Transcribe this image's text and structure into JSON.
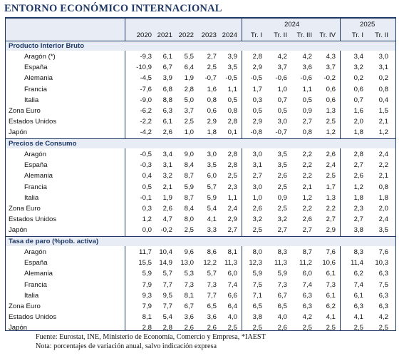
{
  "title": "ENTORNO ECONÓMICO INTERNACIONAL",
  "group_headers": [
    "2024",
    "2025"
  ],
  "column_headers": [
    "2020",
    "2021",
    "2022",
    "2023",
    "2024",
    "Tr. I",
    "Tr. II",
    "Tr. III",
    "Tr. IV",
    "Tr. I",
    "Tr. II"
  ],
  "sections": [
    {
      "title": "Producto Interior Bruto",
      "rows": [
        {
          "label": "Aragón (*)",
          "indent": true,
          "values": [
            "-9,3",
            "6,1",
            "5,5",
            "2,7",
            "3,9",
            "2,8",
            "4,2",
            "4,2",
            "4,3",
            "3,4",
            "3,0"
          ]
        },
        {
          "label": "España",
          "indent": true,
          "values": [
            "-10,9",
            "6,7",
            "6,4",
            "2,5",
            "3,5",
            "2,9",
            "3,7",
            "3,6",
            "3,7",
            "3,2",
            "3,1"
          ]
        },
        {
          "label": "Alemania",
          "indent": true,
          "values": [
            "-4,5",
            "3,9",
            "1,9",
            "-0,7",
            "-0,5",
            "-0,5",
            "-0,6",
            "-0,6",
            "-0,2",
            "0,2",
            "0,2"
          ]
        },
        {
          "label": "Francia",
          "indent": true,
          "values": [
            "-7,6",
            "6,8",
            "2,8",
            "1,6",
            "1,1",
            "1,7",
            "1,0",
            "1,1",
            "0,6",
            "0,6",
            "0,8"
          ]
        },
        {
          "label": "Italia",
          "indent": true,
          "values": [
            "-9,0",
            "8,8",
            "5,0",
            "0,8",
            "0,5",
            "0,3",
            "0,7",
            "0,5",
            "0,6",
            "0,7",
            "0,4"
          ]
        },
        {
          "label": "Zona Euro",
          "indent": false,
          "values": [
            "-6,2",
            "6,3",
            "3,7",
            "0,6",
            "0,8",
            "0,5",
            "0,5",
            "0,9",
            "1,3",
            "1,6",
            "1,5"
          ]
        },
        {
          "label": "Estados Unidos",
          "indent": false,
          "values": [
            "-2,2",
            "6,1",
            "2,5",
            "2,9",
            "2,8",
            "2,9",
            "3,0",
            "2,7",
            "2,5",
            "2,0",
            "2,1"
          ]
        },
        {
          "label": "Japón",
          "indent": false,
          "values": [
            "-4,2",
            "2,6",
            "1,0",
            "1,8",
            "0,1",
            "-0,8",
            "-0,7",
            "0,8",
            "1,2",
            "1,8",
            "1,2"
          ]
        }
      ]
    },
    {
      "title": "Precios de Consumo",
      "rows": [
        {
          "label": "Aragón",
          "indent": true,
          "values": [
            "-0,5",
            "3,4",
            "9,0",
            "3,0",
            "2,8",
            "3,0",
            "3,5",
            "2,2",
            "2,6",
            "2,8",
            "2,4"
          ]
        },
        {
          "label": "España",
          "indent": true,
          "values": [
            "-0,3",
            "3,1",
            "8,4",
            "3,5",
            "2,8",
            "3,1",
            "3,5",
            "2,2",
            "2,4",
            "2,7",
            "2,2"
          ]
        },
        {
          "label": "Alemania",
          "indent": true,
          "values": [
            "0,4",
            "3,2",
            "8,7",
            "6,0",
            "2,5",
            "2,7",
            "2,6",
            "2,2",
            "2,5",
            "2,6",
            "2,1"
          ]
        },
        {
          "label": "Francia",
          "indent": true,
          "values": [
            "0,5",
            "2,1",
            "5,9",
            "5,7",
            "2,3",
            "3,0",
            "2,5",
            "2,1",
            "1,7",
            "1,2",
            "0,8"
          ]
        },
        {
          "label": "Italia",
          "indent": true,
          "values": [
            "-0,1",
            "1,9",
            "8,7",
            "5,9",
            "1,1",
            "1,0",
            "0,9",
            "1,2",
            "1,3",
            "1,8",
            "1,8"
          ]
        },
        {
          "label": "Zona Euro",
          "indent": false,
          "values": [
            "0,3",
            "2,6",
            "8,4",
            "5,4",
            "2,4",
            "2,6",
            "2,5",
            "2,2",
            "2,2",
            "2,3",
            "2,0"
          ]
        },
        {
          "label": "Estados Unidos",
          "indent": false,
          "values": [
            "1,2",
            "4,7",
            "8,0",
            "4,1",
            "2,9",
            "3,2",
            "3,2",
            "2,6",
            "2,7",
            "2,7",
            "2,4"
          ]
        },
        {
          "label": "Japón",
          "indent": false,
          "values": [
            "0,0",
            "-0,2",
            "2,5",
            "3,3",
            "2,7",
            "2,5",
            "2,7",
            "2,7",
            "2,9",
            "3,8",
            "3,5"
          ]
        }
      ]
    },
    {
      "title": "Tasa de paro (%pob. activa)",
      "rows": [
        {
          "label": "Aragón",
          "indent": true,
          "values": [
            "11,7",
            "10,4",
            "9,6",
            "8,6",
            "8,1",
            "8,0",
            "8,3",
            "8,7",
            "7,6",
            "8,3",
            "7,6"
          ]
        },
        {
          "label": "España",
          "indent": true,
          "values": [
            "15,5",
            "14,9",
            "13,0",
            "12,2",
            "11,3",
            "12,3",
            "11,3",
            "11,2",
            "10,6",
            "11,4",
            "10,3"
          ]
        },
        {
          "label": "Alemania",
          "indent": true,
          "values": [
            "5,9",
            "5,7",
            "5,3",
            "5,7",
            "6,0",
            "5,9",
            "5,9",
            "6,0",
            "6,1",
            "6,2",
            "6,3"
          ]
        },
        {
          "label": "Francia",
          "indent": true,
          "values": [
            "7,9",
            "7,7",
            "7,3",
            "7,3",
            "7,4",
            "7,5",
            "7,3",
            "7,4",
            "7,3",
            "7,4",
            "7,5"
          ]
        },
        {
          "label": "Italia",
          "indent": true,
          "values": [
            "9,3",
            "9,5",
            "8,1",
            "7,7",
            "6,6",
            "7,1",
            "6,7",
            "6,3",
            "6,1",
            "6,1",
            "6,3"
          ]
        },
        {
          "label": "Zona Euro",
          "indent": false,
          "values": [
            "7,9",
            "7,7",
            "6,7",
            "6,5",
            "6,4",
            "6,5",
            "6,5",
            "6,3",
            "6,2",
            "6,3",
            "6,3"
          ]
        },
        {
          "label": "Estados Unidos",
          "indent": false,
          "values": [
            "8,1",
            "5,4",
            "3,6",
            "3,6",
            "4,0",
            "3,8",
            "4,0",
            "4,2",
            "4,1",
            "4,1",
            "4,2"
          ]
        },
        {
          "label": "Japón",
          "indent": false,
          "values": [
            "2,8",
            "2,8",
            "2,6",
            "2,6",
            "2,5",
            "2,5",
            "2,6",
            "2,5",
            "2,5",
            "2,5",
            "2,5"
          ]
        }
      ]
    }
  ],
  "footnotes": [
    "Fuente: Eurostat, INE, Ministerio de Economía, Comercio y Empresa, *IAEST",
    "Nota: porcentajes de variación anual, salvo indicación expresa"
  ],
  "colors": {
    "accent": "#1f3864",
    "band": "#e7ecf5"
  }
}
